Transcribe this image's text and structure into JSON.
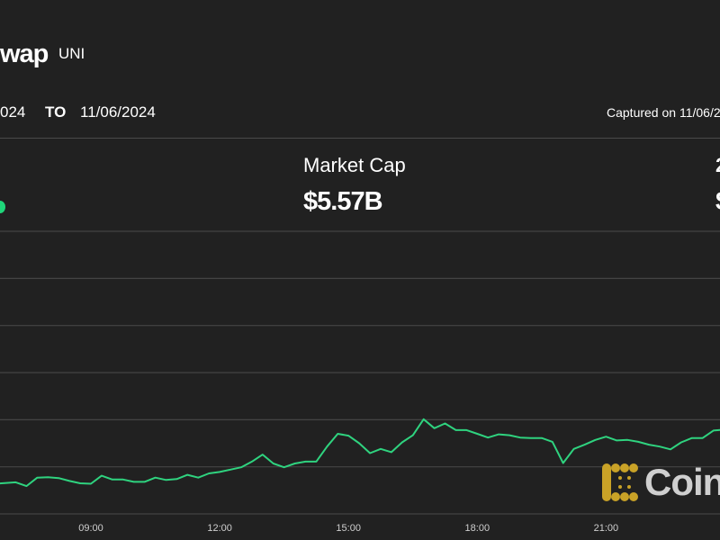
{
  "header": {
    "title": "wap",
    "ticker": "UNI",
    "date_from": "024",
    "to_label": "TO",
    "date_to": "11/06/2024",
    "captured": "Captured on 11/06/2"
  },
  "stats": {
    "change_indicator_color": "#1fd67a",
    "market_cap_label": "Market Cap",
    "market_cap_value": "$5.57B",
    "right_label": "2",
    "right_value": "$"
  },
  "logo": {
    "text": "Coin",
    "icon_color": "#c9a227"
  },
  "chart_data": {
    "type": "line",
    "line_color": "#2fd37f",
    "grid": true,
    "xlabel": "",
    "ylabel": "",
    "x_tick_labels": [
      "09:00",
      "12:00",
      "15:00",
      "18:00",
      "21:00"
    ],
    "y_units": "gridline steps (no y labels printed)",
    "ylim": [
      0,
      6
    ],
    "x": [
      "06:45",
      "07:15",
      "07:30",
      "07:45",
      "08:00",
      "08:15",
      "08:30",
      "08:45",
      "09:00",
      "09:15",
      "09:30",
      "09:45",
      "10:00",
      "10:15",
      "10:30",
      "10:45",
      "11:00",
      "11:15",
      "11:30",
      "11:45",
      "12:00",
      "12:15",
      "12:30",
      "12:45",
      "13:00",
      "13:15",
      "13:30",
      "13:45",
      "14:00",
      "14:15",
      "14:30",
      "14:45",
      "15:00",
      "15:15",
      "15:30",
      "15:45",
      "16:00",
      "16:15",
      "16:30",
      "16:45",
      "17:00",
      "17:15",
      "17:30",
      "17:45",
      "18:00",
      "18:15",
      "18:30",
      "18:45",
      "19:00",
      "19:15",
      "19:30",
      "19:45",
      "20:00",
      "20:15",
      "20:30",
      "20:45",
      "21:00",
      "21:15",
      "21:30",
      "21:45",
      "22:00",
      "22:15",
      "22:30",
      "22:45",
      "23:00",
      "23:15",
      "23:30",
      "23:45"
    ],
    "y": [
      0.64,
      0.67,
      0.59,
      0.77,
      0.78,
      0.76,
      0.7,
      0.65,
      0.64,
      0.81,
      0.73,
      0.73,
      0.68,
      0.68,
      0.77,
      0.72,
      0.74,
      0.83,
      0.77,
      0.86,
      0.89,
      0.94,
      0.99,
      1.11,
      1.26,
      1.07,
      0.99,
      1.07,
      1.11,
      1.11,
      1.43,
      1.7,
      1.66,
      1.5,
      1.29,
      1.38,
      1.31,
      1.52,
      1.67,
      2.01,
      1.82,
      1.92,
      1.78,
      1.78,
      1.7,
      1.62,
      1.69,
      1.67,
      1.62,
      1.61,
      1.61,
      1.53,
      1.08,
      1.38,
      1.47,
      1.57,
      1.64,
      1.56,
      1.57,
      1.53,
      1.47,
      1.43,
      1.37,
      1.52,
      1.61,
      1.61,
      1.77,
      1.79
    ]
  }
}
